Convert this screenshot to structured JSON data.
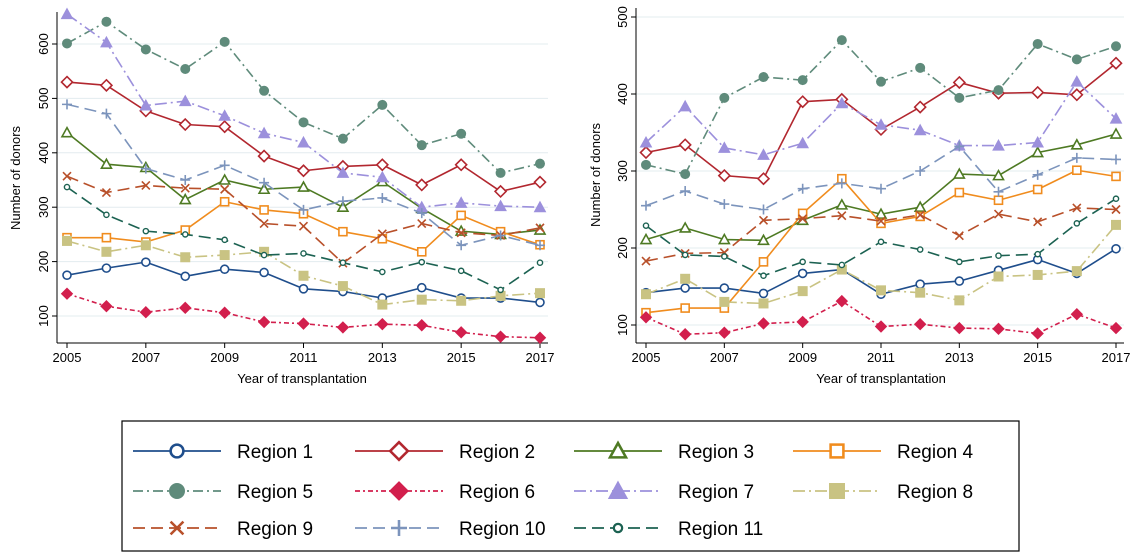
{
  "chart_data": [
    {
      "type": "line",
      "xlabel": "Year of transplantation",
      "ylabel": "Number of donors",
      "xlim": [
        2005,
        2017
      ],
      "ylim": [
        70,
        660
      ],
      "x_ticks": [
        "2005",
        "2007",
        "2009",
        "2011",
        "2013",
        "2015",
        "2017"
      ],
      "y_ticks": [
        "100",
        "200",
        "300",
        "400",
        "500",
        "600"
      ],
      "grid": "horizontal",
      "x": [
        2005,
        2006,
        2007,
        2008,
        2009,
        2010,
        2011,
        2012,
        2013,
        2014,
        2015,
        2016,
        2017
      ],
      "series": [
        {
          "name": "Region 1",
          "values": [
            175,
            188,
            199,
            173,
            186,
            180,
            150,
            145,
            133,
            152,
            133,
            133,
            125
          ]
        },
        {
          "name": "Region 2",
          "values": [
            530,
            524,
            477,
            452,
            448,
            394,
            367,
            375,
            378,
            341,
            378,
            329,
            346
          ]
        },
        {
          "name": "Region 3",
          "values": [
            437,
            379,
            373,
            314,
            350,
            333,
            337,
            300,
            347,
            298,
            256,
            250,
            258
          ]
        },
        {
          "name": "Region 4",
          "values": [
            244,
            244,
            236,
            258,
            310,
            295,
            288,
            255,
            242,
            218,
            285,
            255,
            231
          ]
        },
        {
          "name": "Region 5",
          "values": [
            601,
            641,
            590,
            554,
            604,
            514,
            456,
            426,
            488,
            414,
            435,
            363,
            380
          ]
        },
        {
          "name": "Region 6",
          "values": [
            141,
            118,
            107,
            115,
            106,
            89,
            86,
            79,
            85,
            83,
            70,
            62,
            60
          ]
        },
        {
          "name": "Region 7",
          "values": [
            655,
            603,
            487,
            495,
            468,
            436,
            419,
            363,
            355,
            300,
            308,
            302,
            300
          ]
        },
        {
          "name": "Region 8",
          "values": [
            238,
            218,
            230,
            208,
            212,
            218,
            174,
            155,
            121,
            130,
            128,
            137,
            142
          ]
        },
        {
          "name": "Region 9",
          "values": [
            357,
            327,
            340,
            335,
            333,
            270,
            265,
            197,
            251,
            270,
            253,
            248,
            262
          ]
        },
        {
          "name": "Region 10",
          "values": [
            489,
            472,
            371,
            350,
            377,
            345,
            295,
            311,
            317,
            289,
            230,
            248,
            230
          ]
        },
        {
          "name": "Region 11",
          "values": [
            337,
            286,
            256,
            250,
            240,
            212,
            215,
            198,
            181,
            199,
            183,
            148,
            198
          ]
        }
      ]
    },
    {
      "type": "line",
      "xlabel": "Year of transplantation",
      "ylabel": "Number of donors",
      "xlim": [
        2005,
        2017
      ],
      "ylim": [
        75,
        500
      ],
      "x_ticks": [
        "2005",
        "2007",
        "2009",
        "2011",
        "2013",
        "2015",
        "2017"
      ],
      "y_ticks": [
        "100",
        "200",
        "300",
        "400",
        "500"
      ],
      "grid": "horizontal",
      "x": [
        2005,
        2006,
        2007,
        2008,
        2009,
        2010,
        2011,
        2012,
        2013,
        2014,
        2015,
        2016,
        2017
      ],
      "series": [
        {
          "name": "Region 1",
          "values": [
            142,
            148,
            148,
            141,
            167,
            172,
            140,
            153,
            157,
            171,
            185,
            167,
            199
          ]
        },
        {
          "name": "Region 2",
          "values": [
            324,
            334,
            294,
            290,
            390,
            393,
            354,
            383,
            415,
            401,
            402,
            399,
            440
          ]
        },
        {
          "name": "Region 3",
          "values": [
            211,
            226,
            211,
            210,
            236,
            256,
            244,
            253,
            296,
            294,
            324,
            334,
            348
          ]
        },
        {
          "name": "Region 4",
          "values": [
            116,
            122,
            122,
            182,
            245,
            290,
            232,
            241,
            272,
            262,
            276,
            301,
            293
          ]
        },
        {
          "name": "Region 5",
          "values": [
            308,
            296,
            395,
            422,
            418,
            470,
            416,
            434,
            395,
            405,
            465,
            445,
            462
          ]
        },
        {
          "name": "Region 6",
          "values": [
            110,
            88,
            90,
            102,
            104,
            131,
            98,
            101,
            96,
            95,
            89,
            114,
            96
          ]
        },
        {
          "name": "Region 7",
          "values": [
            337,
            384,
            330,
            321,
            336,
            388,
            360,
            353,
            333,
            333,
            337,
            416,
            368
          ]
        },
        {
          "name": "Region 8",
          "values": [
            140,
            160,
            130,
            128,
            144,
            172,
            145,
            142,
            132,
            163,
            165,
            170,
            230
          ]
        },
        {
          "name": "Region 9",
          "values": [
            183,
            193,
            194,
            236,
            238,
            242,
            235,
            243,
            216,
            244,
            234,
            252,
            250
          ]
        },
        {
          "name": "Region 10",
          "values": [
            255,
            274,
            257,
            250,
            277,
            284,
            277,
            300,
            332,
            273,
            295,
            317,
            315
          ]
        },
        {
          "name": "Region 11",
          "values": [
            229,
            191,
            189,
            164,
            182,
            178,
            208,
            198,
            182,
            190,
            192,
            232,
            264
          ]
        }
      ]
    }
  ],
  "series_styles": [
    {
      "color": "#1f4e8c",
      "marker": "circle-open",
      "dash": "solid"
    },
    {
      "color": "#b2272f",
      "marker": "diamond-open",
      "dash": "solid"
    },
    {
      "color": "#4e7a23",
      "marker": "triangle-open",
      "dash": "solid"
    },
    {
      "color": "#f08c1e",
      "marker": "square-open",
      "dash": "solid"
    },
    {
      "color": "#5f8b7b",
      "marker": "circle-filled",
      "dash": "dashdot"
    },
    {
      "color": "#d21f4d",
      "marker": "diamond-filled",
      "dash": "dashdot-dense"
    },
    {
      "color": "#9c90dc",
      "marker": "triangle-filled",
      "dash": "longdash-dot"
    },
    {
      "color": "#c9c383",
      "marker": "square-filled",
      "dash": "longdash-dot"
    },
    {
      "color": "#b8502a",
      "marker": "x",
      "dash": "longdash"
    },
    {
      "color": "#7c94bc",
      "marker": "plus",
      "dash": "longdash"
    },
    {
      "color": "#1c6252",
      "marker": "circle-small",
      "dash": "longdash"
    }
  ]
}
